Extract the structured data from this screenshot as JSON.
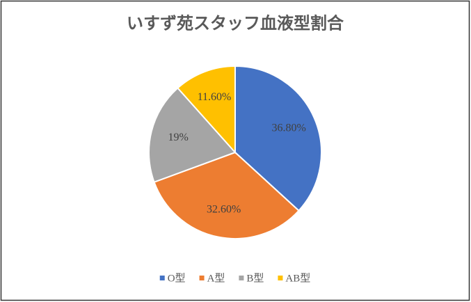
{
  "chart_data": {
    "type": "pie",
    "title": "いすず苑スタッフ血液型割合",
    "categories": [
      "O型",
      "A型",
      "B型",
      "AB型"
    ],
    "values": [
      36.8,
      32.6,
      19,
      11.6
    ],
    "value_labels": [
      "36.80%",
      "32.60%",
      "19%",
      "11.60%"
    ],
    "colors": [
      "#4472c4",
      "#ed7d31",
      "#a5a5a5",
      "#ffc000"
    ],
    "legend": "bottom"
  }
}
